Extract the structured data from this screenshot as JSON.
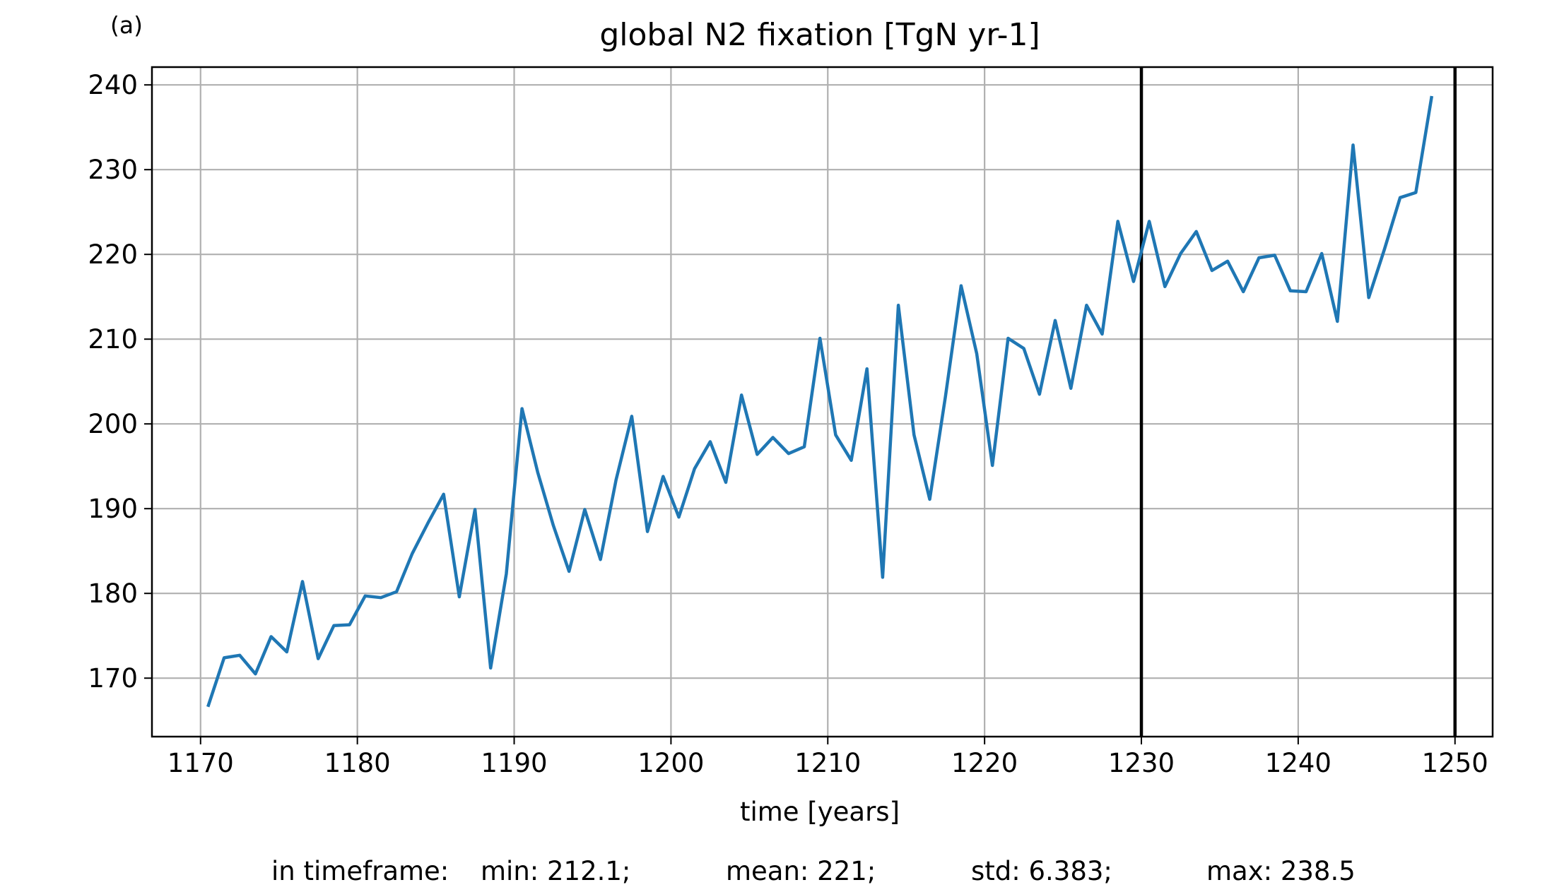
{
  "panel_label": "(a)",
  "chart_data": {
    "type": "line",
    "title": "global N2 fixation [TgN yr-1]",
    "xlabel": "time [years]",
    "ylabel": "",
    "xlim": [
      1166.9,
      1252.4
    ],
    "ylim": [
      163.1,
      242.1
    ],
    "xticks": [
      1170,
      1180,
      1190,
      1200,
      1210,
      1220,
      1230,
      1240,
      1250
    ],
    "yticks": [
      170,
      180,
      190,
      200,
      210,
      220,
      230,
      240
    ],
    "grid": true,
    "vlines": [
      1230,
      1250
    ],
    "series": [
      {
        "color": "#1f77b4",
        "x": [
          1170.5,
          1171.5,
          1172.5,
          1173.5,
          1174.5,
          1175.5,
          1176.5,
          1177.5,
          1178.5,
          1179.5,
          1180.5,
          1181.5,
          1182.5,
          1183.5,
          1184.5,
          1185.5,
          1186.5,
          1187.5,
          1188.5,
          1189.5,
          1190.5,
          1191.5,
          1192.5,
          1193.5,
          1194.5,
          1195.5,
          1196.5,
          1197.5,
          1198.5,
          1199.5,
          1200.5,
          1201.5,
          1202.5,
          1203.5,
          1204.5,
          1205.5,
          1206.5,
          1207.5,
          1208.5,
          1209.5,
          1210.5,
          1211.5,
          1212.5,
          1213.5,
          1214.5,
          1215.5,
          1216.5,
          1217.5,
          1218.5,
          1219.5,
          1220.5,
          1221.5,
          1222.5,
          1223.5,
          1224.5,
          1225.5,
          1226.5,
          1227.5,
          1228.5,
          1229.5,
          1230.5,
          1231.5,
          1232.5,
          1233.5,
          1234.5,
          1235.5,
          1236.5,
          1237.5,
          1238.5,
          1239.5,
          1240.5,
          1241.5,
          1242.5,
          1243.5,
          1244.5,
          1245.5,
          1246.5,
          1247.5,
          1248.5
        ],
        "y": [
          166.8,
          172.4,
          172.7,
          170.5,
          174.9,
          173.1,
          181.4,
          172.3,
          176.2,
          176.3,
          179.7,
          179.5,
          180.2,
          184.7,
          188.3,
          191.7,
          179.6,
          189.9,
          171.2,
          182.3,
          201.8,
          194.3,
          188.0,
          182.6,
          189.9,
          184.0,
          193.4,
          200.9,
          187.3,
          193.8,
          189.0,
          194.7,
          197.9,
          193.1,
          203.4,
          196.4,
          198.4,
          196.5,
          197.3,
          210.1,
          198.7,
          195.7,
          206.5,
          181.9,
          214.0,
          198.7,
          191.1,
          203.2,
          216.3,
          208.3,
          195.1,
          210.1,
          208.9,
          203.5,
          212.2,
          204.2,
          214.0,
          210.6,
          223.9,
          216.8,
          223.9,
          216.2,
          220.1,
          222.7,
          218.1,
          219.2,
          215.6,
          219.6,
          219.9,
          215.7,
          215.6,
          220.1,
          212.1,
          232.9,
          214.9,
          220.6,
          226.7,
          227.3,
          238.5
        ]
      }
    ]
  },
  "stats": {
    "prefix": "in timeframe:",
    "min": "min: 212.1;",
    "mean": "mean: 221;",
    "std": "std: 6.383;",
    "max": "max: 238.5"
  }
}
